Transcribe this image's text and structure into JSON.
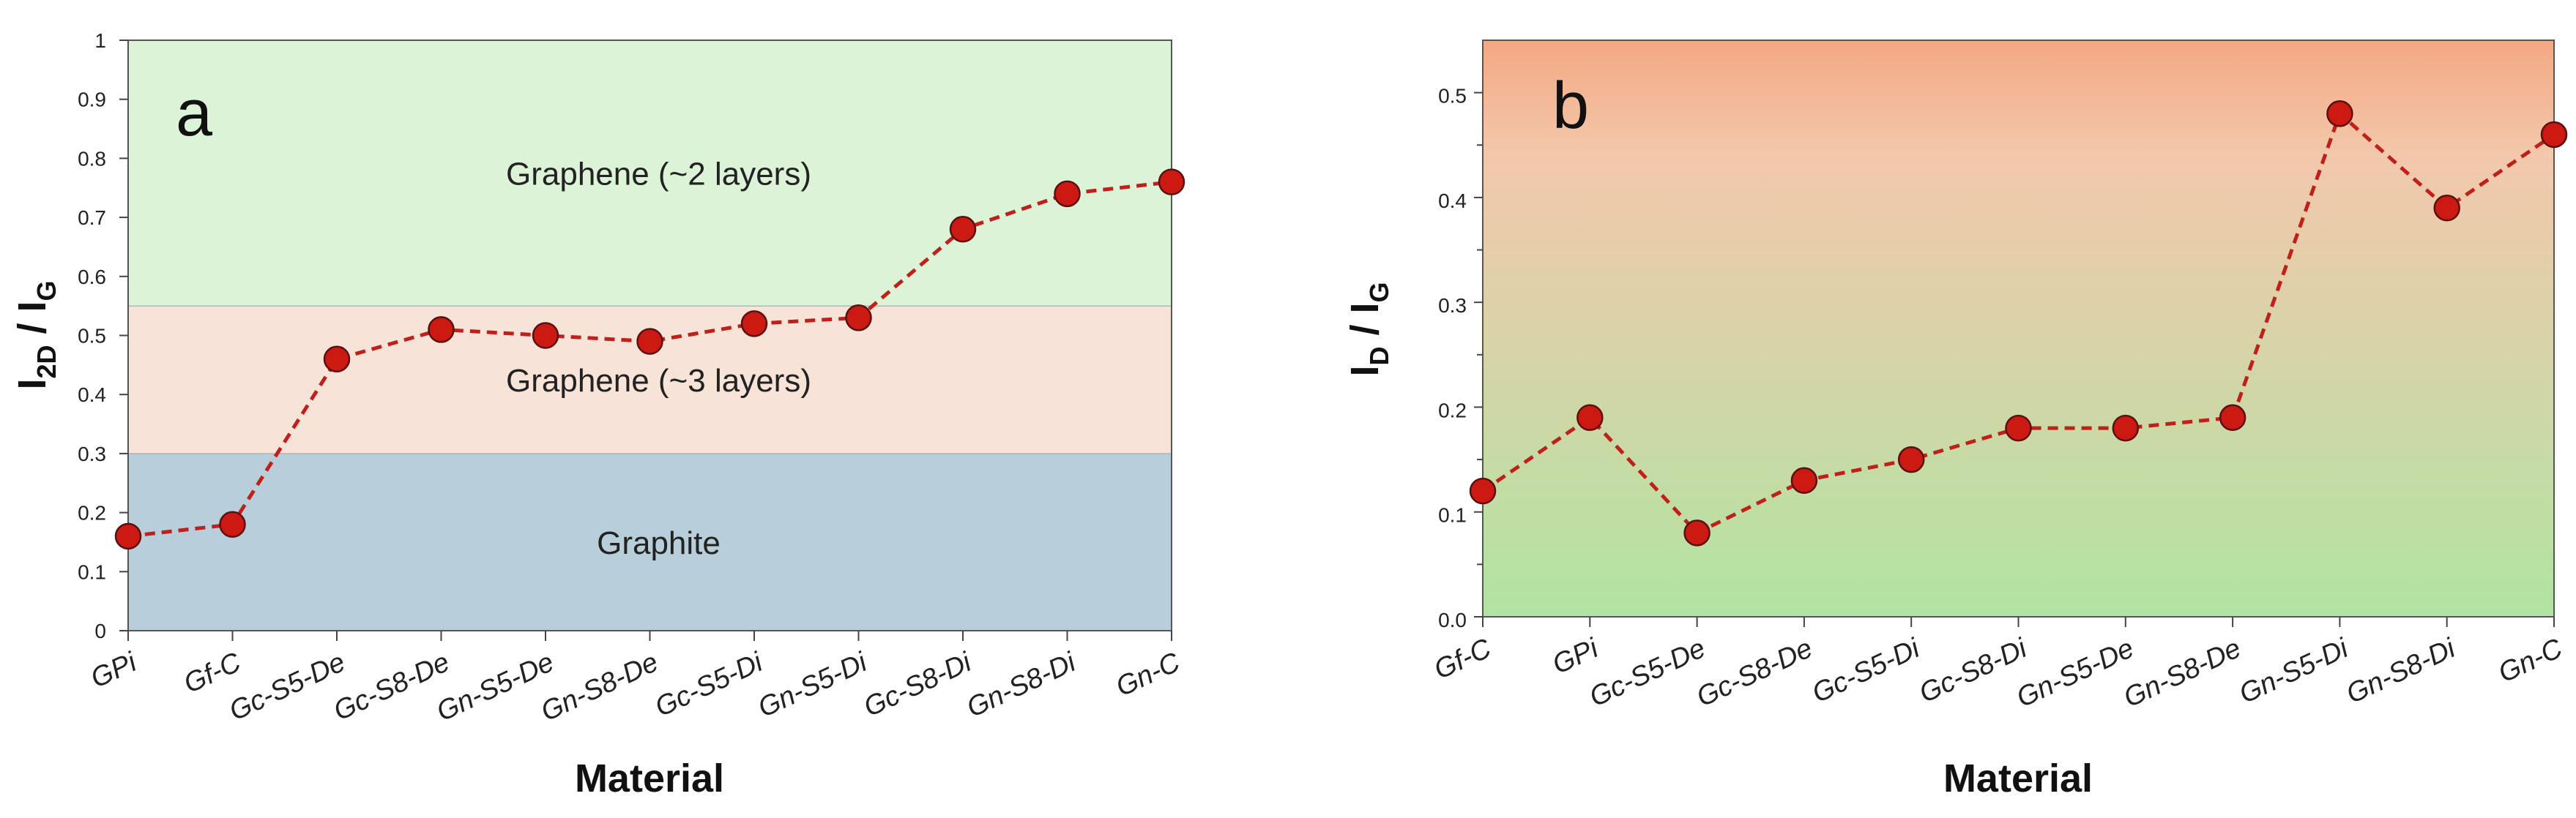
{
  "chart_data": [
    {
      "panel": "a",
      "type": "line",
      "title": "",
      "xlabel": "Material",
      "ylabel_main": "I",
      "ylabel_sub1": "2D",
      "ylabel_sep": " / I",
      "ylabel_sub2": "G",
      "ylim": [
        0,
        1
      ],
      "yticks": [
        "0",
        "0.1",
        "0.2",
        "0.3",
        "0.4",
        "0.5",
        "0.6",
        "0.7",
        "0.8",
        "0.9",
        "1"
      ],
      "categories": [
        "GPi",
        "Gf-C",
        "Gc-S5-De",
        "Gc-S8-De",
        "Gn-S5-De",
        "Gn-S8-De",
        "Gc-S5-Di",
        "Gn-S5-Di",
        "Gc-S8-Di",
        "Gn-S8-Di",
        "Gn-C"
      ],
      "series": [
        {
          "name": "I2D/IG",
          "values": [
            0.16,
            0.18,
            0.46,
            0.51,
            0.5,
            0.49,
            0.52,
            0.53,
            0.68,
            0.74,
            0.76
          ]
        }
      ],
      "regions": [
        {
          "label": "Graphite",
          "from": 0,
          "to": 0.3,
          "color": "#b8ceda"
        },
        {
          "label": "Graphene    (~3 layers)",
          "from": 0.3,
          "to": 0.55,
          "color": "#f8e3d8"
        },
        {
          "label": "Graphene   (~2 layers)",
          "from": 0.55,
          "to": 1.0,
          "color": "#dcf3d7"
        }
      ]
    },
    {
      "panel": "b",
      "type": "line",
      "title": "",
      "xlabel": "Material",
      "ylabel_main": "I",
      "ylabel_sub1": "D",
      "ylabel_sep": " / I",
      "ylabel_sub2": "G",
      "ylim": [
        0,
        0.55
      ],
      "yticks": [
        "0.0",
        "0.1",
        "0.2",
        "0.3",
        "0.4",
        "0.5"
      ],
      "categories": [
        "Gf-C",
        "GPi",
        "Gc-S5-De",
        "Gc-S8-De",
        "Gc-S5-Di",
        "Gc-S8-Di",
        "Gn-S5-De",
        "Gn-S8-De",
        "Gn-S5-Di",
        "Gn-S8-Di",
        "Gn-C"
      ],
      "series": [
        {
          "name": "ID/IG",
          "values": [
            0.12,
            0.19,
            0.08,
            0.13,
            0.15,
            0.18,
            0.18,
            0.19,
            0.48,
            0.39,
            0.46
          ]
        }
      ],
      "gradient": {
        "top": "#f3a882",
        "middle": "#f3c8ac",
        "bottom": "#b0e4a2"
      }
    }
  ],
  "colors": {
    "line": "#c0201a",
    "marker": "#cc1a12",
    "marker_edge": "#5a1010"
  }
}
